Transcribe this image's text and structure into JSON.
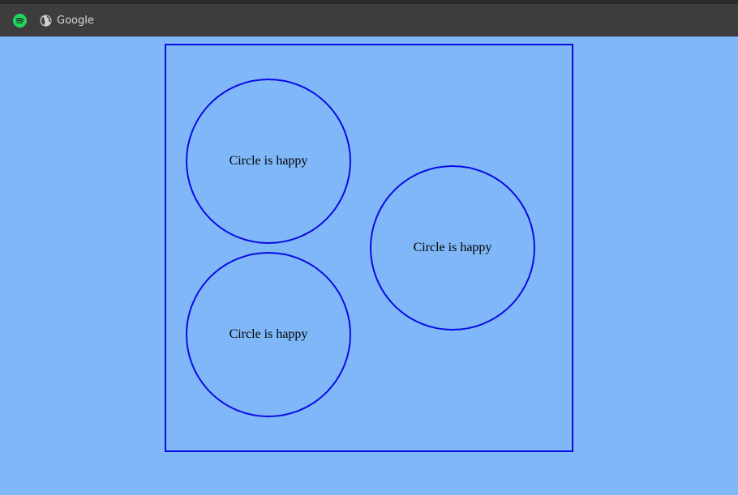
{
  "bookmarks": {
    "items": [
      {
        "icon": "spotify-icon",
        "label": "",
        "color": "#1ed760"
      },
      {
        "icon": "globe-icon",
        "label": "Google"
      }
    ]
  },
  "page": {
    "background": "#80b7f8",
    "border_color": "#0a0ae6",
    "circles": [
      {
        "text": "Circle is happy"
      },
      {
        "text": "Circle is happy"
      },
      {
        "text": "Circle is happy"
      }
    ]
  }
}
